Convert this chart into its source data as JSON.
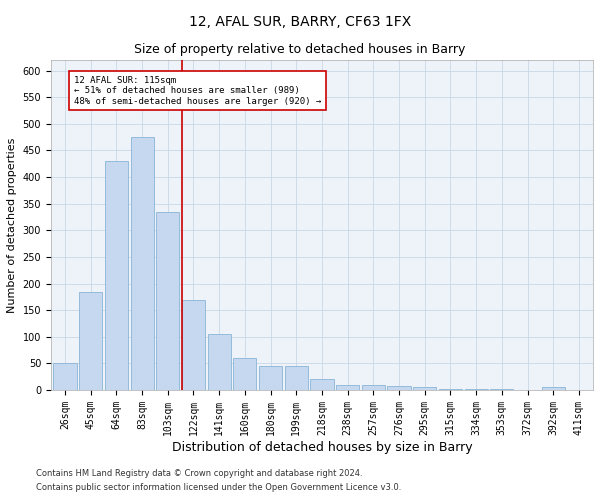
{
  "title1": "12, AFAL SUR, BARRY, CF63 1FX",
  "title2": "Size of property relative to detached houses in Barry",
  "xlabel": "Distribution of detached houses by size in Barry",
  "ylabel": "Number of detached properties",
  "footnote1": "Contains HM Land Registry data © Crown copyright and database right 2024.",
  "footnote2": "Contains public sector information licensed under the Open Government Licence v3.0.",
  "categories": [
    "26sqm",
    "45sqm",
    "64sqm",
    "83sqm",
    "103sqm",
    "122sqm",
    "141sqm",
    "160sqm",
    "180sqm",
    "199sqm",
    "218sqm",
    "238sqm",
    "257sqm",
    "276sqm",
    "295sqm",
    "315sqm",
    "334sqm",
    "353sqm",
    "372sqm",
    "392sqm",
    "411sqm"
  ],
  "values": [
    50,
    185,
    430,
    475,
    335,
    170,
    105,
    60,
    45,
    45,
    20,
    10,
    10,
    7,
    5,
    2,
    1,
    1,
    0,
    5,
    0
  ],
  "bar_color": "#c5d8f0",
  "bar_edge_color": "#8ab4d8",
  "vline_color": "#cc0000",
  "vline_x": 5.0,
  "annotation_text": "12 AFAL SUR: 115sqm\n← 51% of detached houses are smaller (989)\n48% of semi-detached houses are larger (920) →",
  "annotation_box_color": "#ffffff",
  "annotation_box_edge": "#cc0000",
  "ylim": [
    0,
    620
  ],
  "yticks": [
    0,
    50,
    100,
    150,
    200,
    250,
    300,
    350,
    400,
    450,
    500,
    550,
    600
  ],
  "grid_color": "#c8d8e8",
  "bg_color": "#eef3fa",
  "title1_fontsize": 10,
  "title2_fontsize": 9,
  "xlabel_fontsize": 9,
  "ylabel_fontsize": 8,
  "tick_fontsize": 7,
  "footnote_fontsize": 6
}
